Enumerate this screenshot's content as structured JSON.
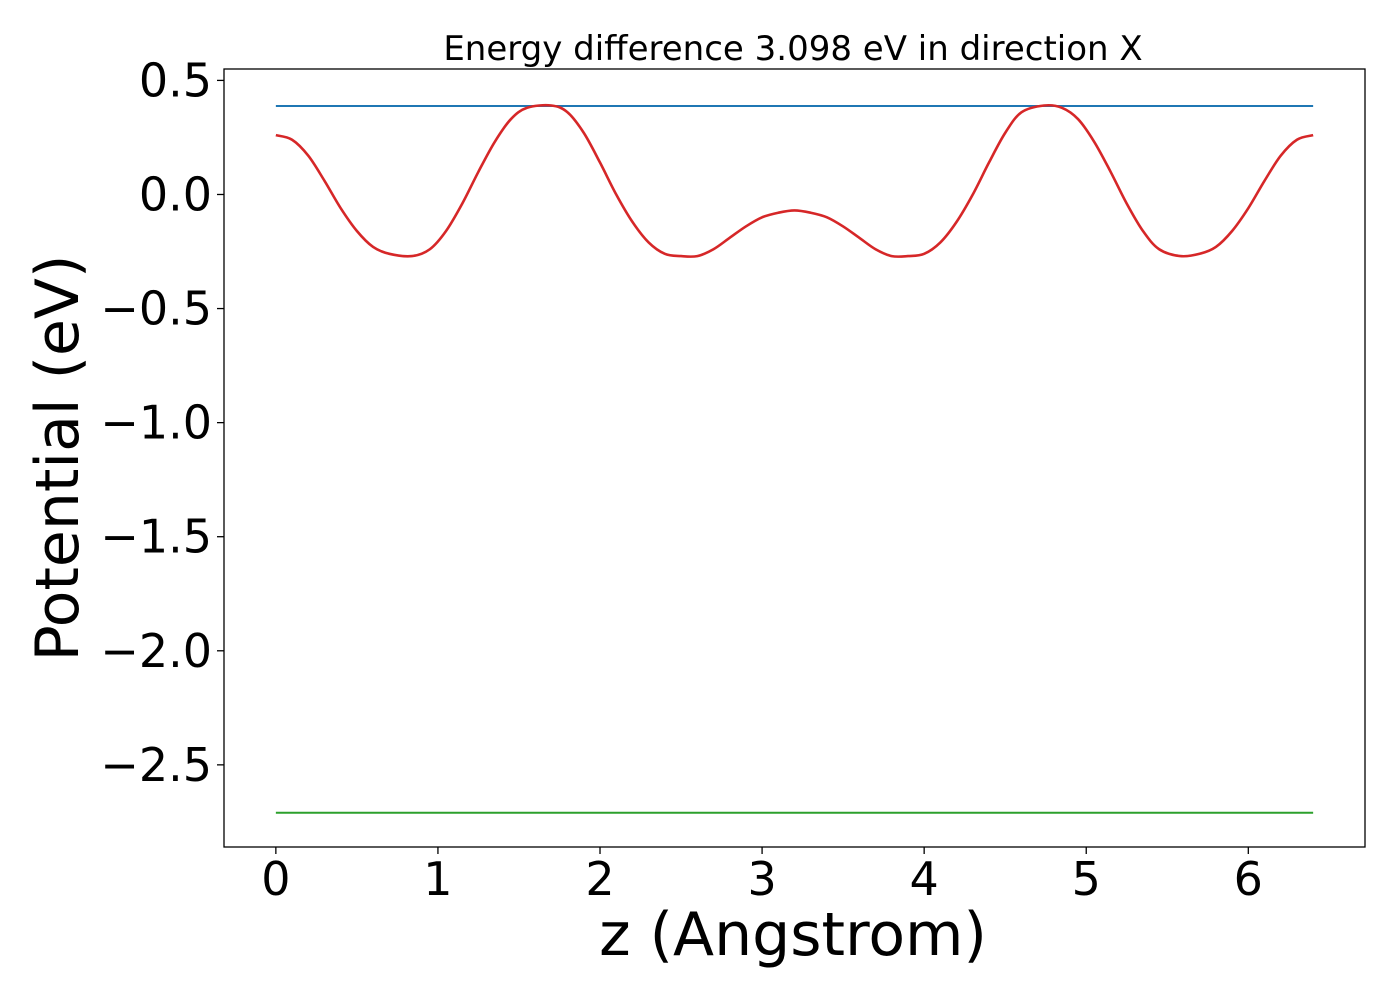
{
  "chart_data": {
    "type": "line",
    "title": "Energy difference 3.098 eV in direction X",
    "xlabel": "z (Angstrom)",
    "ylabel": "Potential (eV)",
    "xlim": [
      -0.32,
      6.72
    ],
    "ylim": [
      -2.86,
      0.55
    ],
    "x_ticks": [
      0,
      1,
      2,
      3,
      4,
      5,
      6
    ],
    "x_tick_labels": [
      "0",
      "1",
      "2",
      "3",
      "4",
      "5",
      "6"
    ],
    "y_ticks": [
      0.5,
      0.0,
      -0.5,
      -1.0,
      -1.5,
      -2.0,
      -2.5
    ],
    "y_tick_labels": [
      "0.5",
      "0.0",
      "−0.5",
      "−1.0",
      "−1.5",
      "−2.0",
      "−2.5"
    ],
    "grid": false,
    "series": [
      {
        "kind": "hline",
        "color": "#1f77b4",
        "x": [
          0.0,
          6.4
        ],
        "y": [
          0.388,
          0.388
        ]
      },
      {
        "kind": "hline",
        "color": "#2ca02c",
        "x": [
          0.0,
          6.4
        ],
        "y": [
          -2.71,
          -2.71
        ]
      },
      {
        "kind": "curve",
        "color": "#d62728",
        "x": [
          0.0,
          0.1,
          0.2,
          0.3,
          0.4,
          0.5,
          0.6,
          0.7,
          0.84,
          0.95,
          1.05,
          1.15,
          1.25,
          1.35,
          1.45,
          1.55,
          1.7,
          1.8,
          1.9,
          2.0,
          2.1,
          2.2,
          2.3,
          2.4,
          2.5,
          2.6,
          2.7,
          2.8,
          2.9,
          3.0,
          3.1,
          3.2,
          3.3,
          3.4,
          3.5,
          3.6,
          3.7,
          3.8,
          3.9,
          4.0,
          4.1,
          4.2,
          4.3,
          4.4,
          4.5,
          4.6,
          4.74,
          4.85,
          4.95,
          5.05,
          5.15,
          5.25,
          5.35,
          5.45,
          5.58,
          5.7,
          5.8,
          5.9,
          6.0,
          6.1,
          6.2,
          6.3,
          6.4
        ],
        "y": [
          0.26,
          0.24,
          0.17,
          0.06,
          -0.06,
          -0.16,
          -0.23,
          -0.26,
          -0.27,
          -0.24,
          -0.16,
          -0.04,
          0.1,
          0.23,
          0.33,
          0.38,
          0.39,
          0.36,
          0.27,
          0.14,
          0.0,
          -0.12,
          -0.21,
          -0.26,
          -0.27,
          -0.27,
          -0.24,
          -0.19,
          -0.14,
          -0.1,
          -0.08,
          -0.07,
          -0.08,
          -0.1,
          -0.14,
          -0.19,
          -0.24,
          -0.27,
          -0.27,
          -0.26,
          -0.21,
          -0.12,
          0.0,
          0.14,
          0.27,
          0.36,
          0.39,
          0.38,
          0.33,
          0.23,
          0.1,
          -0.04,
          -0.16,
          -0.24,
          -0.27,
          -0.26,
          -0.23,
          -0.16,
          -0.06,
          0.06,
          0.17,
          0.24,
          0.26
        ]
      }
    ]
  }
}
